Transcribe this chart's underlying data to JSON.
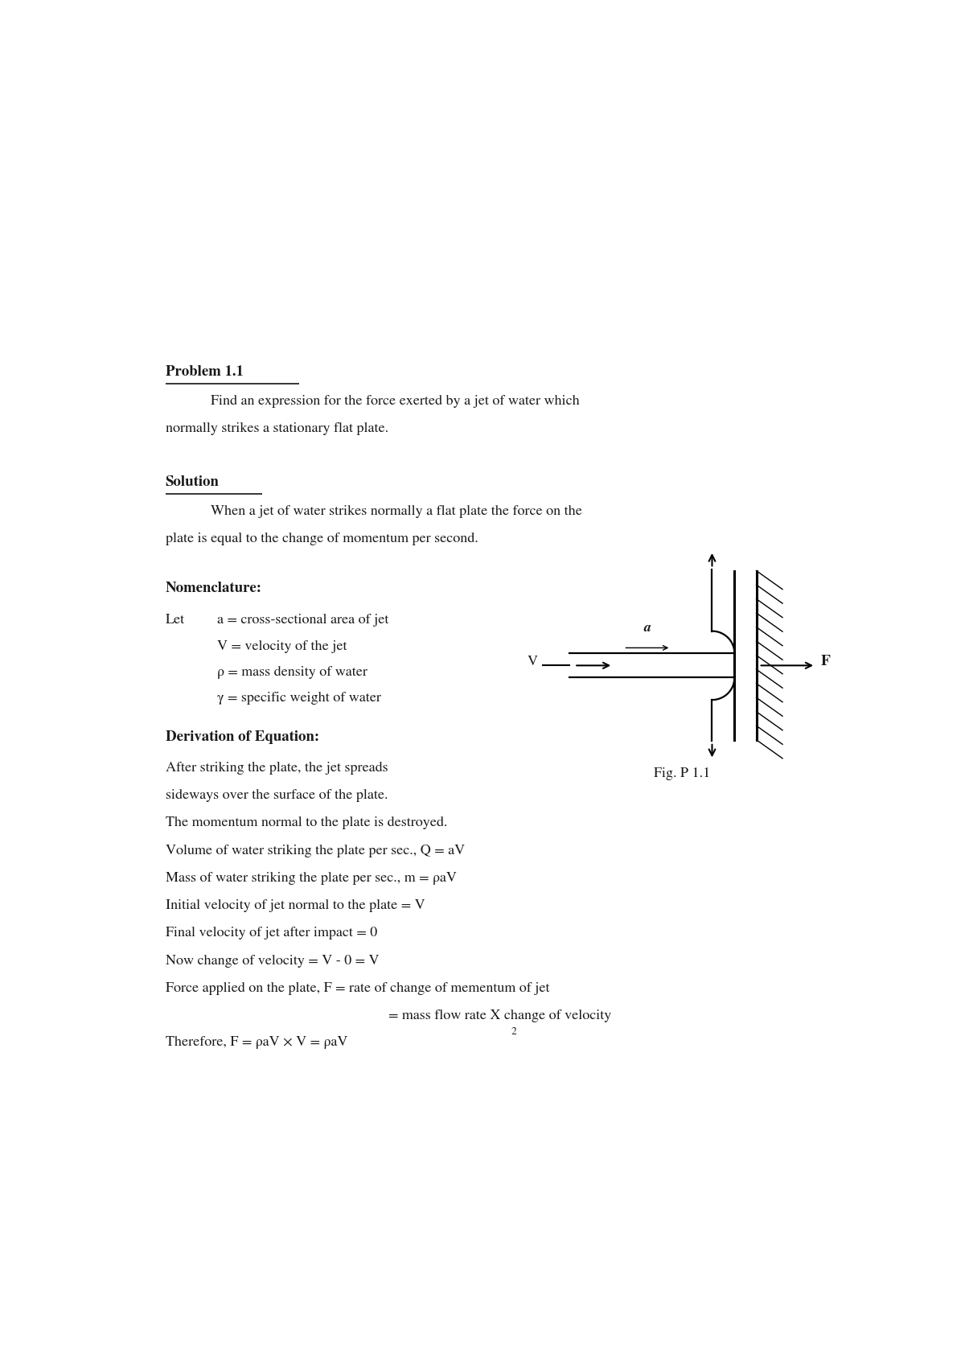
{
  "bg_color": "#ffffff",
  "text_color": "#1a1a1a",
  "problem_title": "Problem 1.1",
  "problem_text_line1": "Find an expression for the force exerted by a jet of water which",
  "problem_text_line2": "normally strikes a stationary flat plate.",
  "solution_title": "Solution",
  "solution_text_line1": "When a jet of water strikes normally a flat plate the force on the",
  "solution_text_line2": "plate is equal to the change of momentum per second.",
  "nomenclature_title": "Nomenclature:",
  "nomenclature_let": "Let",
  "nom_a": "a = cross-sectional area of jet",
  "nom_V": "V = velocity of the jet",
  "nom_rho": "ρ = mass density of water",
  "nom_gamma": "γ = specific weight of water",
  "derivation_title": "Derivation of Equation:",
  "deriv_lines": [
    "After striking the plate, the jet spreads",
    "sideways over the surface of the plate.",
    "The momentum normal to the plate is destroyed.",
    "Volume of water striking the plate per sec., Q = aV",
    "Mass of water striking the plate per sec., m = ρaV",
    "Initial velocity of jet normal to the plate = V",
    "Final velocity of jet after impact = 0",
    "Now change of velocity = V - 0 = V",
    "Force applied on the plate, F = rate of change of mementum of jet"
  ],
  "deriv_indent_line": "= mass flow rate X change of velocity",
  "therefore_line": "Therefore, F = ρaV × V = ρaV",
  "fig_caption": "Fig. P 1.1",
  "page_width": 12.0,
  "page_height": 16.97
}
